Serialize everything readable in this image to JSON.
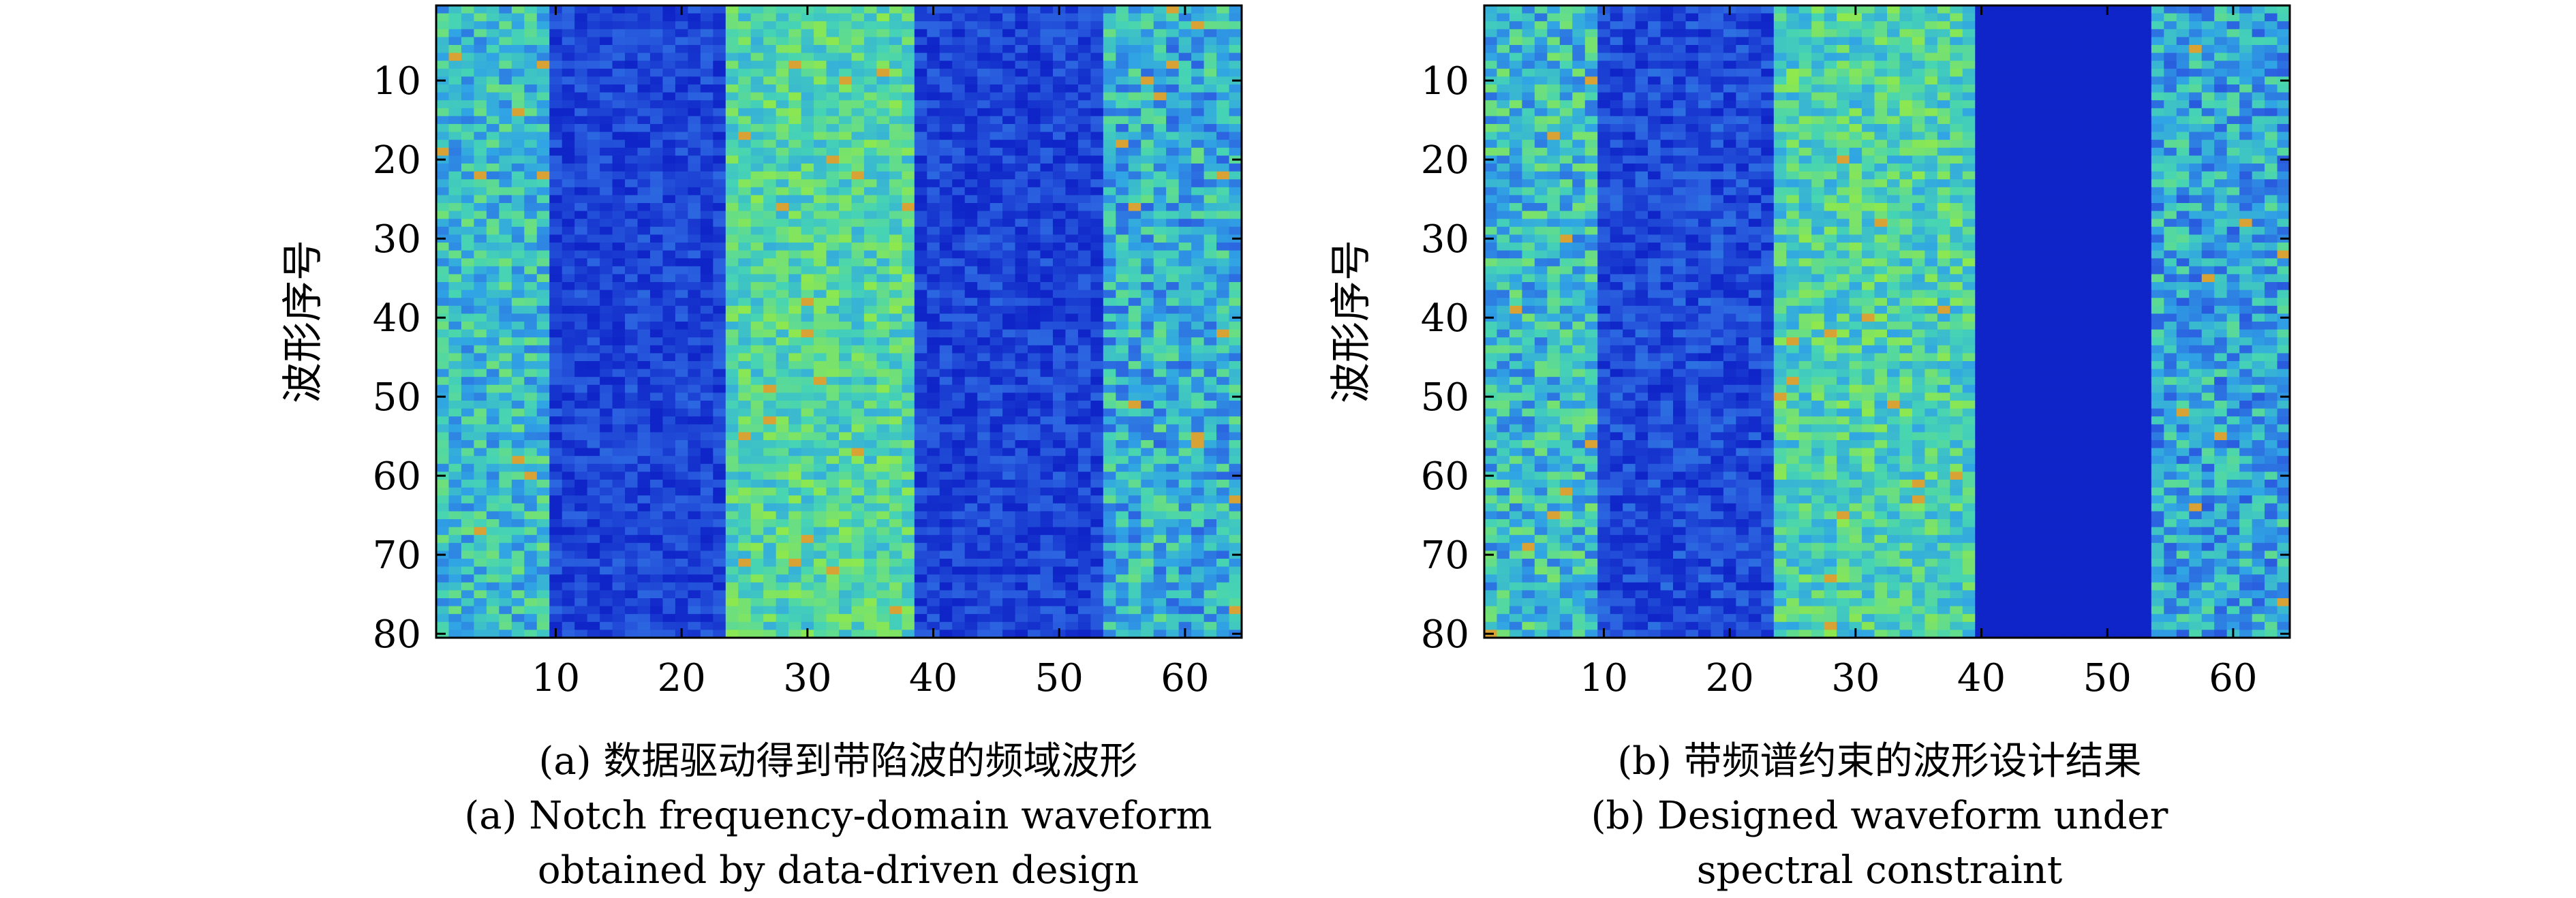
{
  "chart_data": [
    {
      "type": "heatmap",
      "panel": "a",
      "ylabel": "波形序号",
      "xlabel": "",
      "xlim": [
        0.5,
        64.5
      ],
      "ylim": [
        80.5,
        0.5
      ],
      "xticks": [
        "10",
        "20",
        "30",
        "40",
        "50",
        "60"
      ],
      "yticks": [
        "10",
        "20",
        "30",
        "40",
        "50",
        "60",
        "70",
        "80"
      ],
      "n_rows": 80,
      "n_cols": 64,
      "colormap": "parula-like",
      "colormap_stops": [
        "#0f25c8",
        "#2b62e0",
        "#30a4e4",
        "#46d4b4",
        "#8ee84e",
        "#f08a2c"
      ],
      "column_bands": [
        {
          "cols": [
            1,
            9
          ],
          "mean_level": 0.5,
          "variation": 0.22
        },
        {
          "cols": [
            10,
            23
          ],
          "mean_level": 0.1,
          "variation": 0.12
        },
        {
          "cols": [
            24,
            38
          ],
          "mean_level": 0.62,
          "variation": 0.18
        },
        {
          "cols": [
            39,
            53
          ],
          "mean_level": 0.1,
          "variation": 0.12
        },
        {
          "cols": [
            54,
            64
          ],
          "mean_level": 0.45,
          "variation": 0.25
        }
      ],
      "caption_cn": "(a) 数据驱动得到带陷波的频域波形",
      "caption_en_1": "(a) Notch frequency-domain waveform",
      "caption_en_2": "obtained by data-driven design"
    },
    {
      "type": "heatmap",
      "panel": "b",
      "ylabel": "波形序号",
      "xlabel": "",
      "xlim": [
        0.5,
        64.5
      ],
      "ylim": [
        80.5,
        0.5
      ],
      "xticks": [
        "10",
        "20",
        "30",
        "40",
        "50",
        "60"
      ],
      "yticks": [
        "10",
        "20",
        "30",
        "40",
        "50",
        "60",
        "70",
        "80"
      ],
      "n_rows": 80,
      "n_cols": 64,
      "colormap": "parula-like",
      "colormap_stops": [
        "#0f25c8",
        "#2b62e0",
        "#30a4e4",
        "#46d4b4",
        "#8ee84e",
        "#f08a2c"
      ],
      "column_bands": [
        {
          "cols": [
            1,
            9
          ],
          "mean_level": 0.5,
          "variation": 0.25
        },
        {
          "cols": [
            10,
            23
          ],
          "mean_level": 0.12,
          "variation": 0.13
        },
        {
          "cols": [
            24,
            39
          ],
          "mean_level": 0.6,
          "variation": 0.2
        },
        {
          "cols": [
            40,
            53
          ],
          "mean_level": 0.0,
          "variation": 0.0
        },
        {
          "cols": [
            54,
            64
          ],
          "mean_level": 0.42,
          "variation": 0.25
        }
      ],
      "caption_cn": "(b) 带频谱约束的波形设计结果",
      "caption_en_1": "(b) Designed waveform under",
      "caption_en_2": "spectral constraint"
    }
  ]
}
